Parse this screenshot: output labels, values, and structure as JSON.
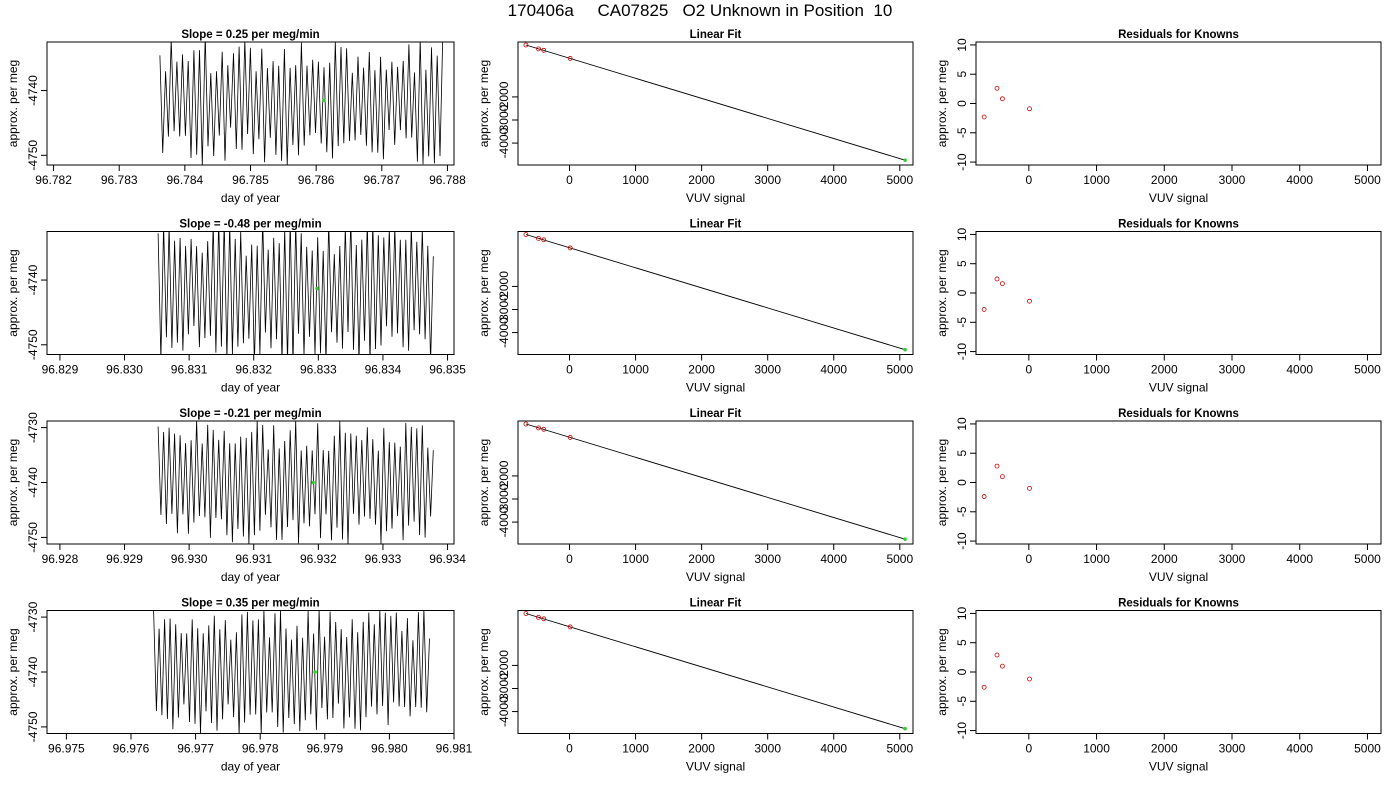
{
  "figure": {
    "title": "170406a     CA07825   O2 Unknown in Position  10"
  },
  "chart_data": [
    {
      "type": "line",
      "panel": "time-series",
      "title": "Slope =  0.25  per meg/min",
      "xlabel": "day of year",
      "ylabel": "approx. per meg",
      "xlim": [
        96.7819,
        96.7881
      ],
      "ylim": [
        -4751.5,
        -4732.5
      ],
      "xticks": [
        "96.782",
        "96.783",
        "96.784",
        "96.785",
        "96.786",
        "96.787",
        "96.788"
      ],
      "yticks": [
        "-4740",
        "-4750"
      ],
      "ytick_values": [
        -4740,
        -4750
      ],
      "signal": {
        "start": 96.78362,
        "end": 96.78793,
        "upper": -4733.8,
        "lower": -4749.2,
        "cycles": 50,
        "seed": 1
      },
      "marker": {
        "x": 96.78612,
        "y": -4741.5,
        "color": "#33cc33"
      }
    },
    {
      "type": "line",
      "panel": "linear-fit",
      "title": "Linear Fit",
      "xlabel": "VUV signal",
      "ylabel": "approx. per meg",
      "xlim": [
        -780,
        5200
      ],
      "ylim": [
        -4950,
        380
      ],
      "xticks": [
        "0",
        "1000",
        "2000",
        "3000",
        "4000",
        "5000"
      ],
      "xtick_values": [
        0,
        1000,
        2000,
        3000,
        4000,
        5000
      ],
      "yticks": [
        "-2000",
        "-3000",
        "-4000"
      ],
      "ytick_values": [
        -2000,
        -3000,
        -4000
      ],
      "fit_line": {
        "x": [
          -660,
          5080
        ],
        "y": [
          250,
          -4741
        ]
      },
      "knowns": {
        "x": [
          -660,
          -470,
          -390,
          10
        ],
        "y": [
          250,
          82,
          20,
          -332
        ]
      },
      "unknown": {
        "x": 5080,
        "y": -4741,
        "color": "#33cc33"
      }
    },
    {
      "type": "scatter",
      "panel": "residuals",
      "title": "Residuals for Knowns",
      "xlabel": "VUV signal",
      "ylabel": "approx. per meg",
      "xlim": [
        -780,
        5200
      ],
      "ylim": [
        -10.5,
        10.5
      ],
      "xticks": [
        "0",
        "1000",
        "2000",
        "3000",
        "4000",
        "5000"
      ],
      "xtick_values": [
        0,
        1000,
        2000,
        3000,
        4000,
        5000
      ],
      "yticks": [
        "-10",
        "-5",
        "0",
        "5",
        "10"
      ],
      "ytick_values": [
        -10,
        -5,
        0,
        5,
        10
      ],
      "x": [
        -660,
        -470,
        -390,
        10
      ],
      "y": [
        -2.3,
        2.6,
        0.8,
        -0.9
      ],
      "color": "#cc0000"
    },
    {
      "type": "line",
      "panel": "time-series",
      "title": "Slope =  -0.48  per meg/min",
      "xlabel": "day of year",
      "ylabel": "approx. per meg",
      "xlim": [
        96.8288,
        96.8351
      ],
      "ylim": [
        -4751.5,
        -4732.5
      ],
      "xticks": [
        "96.829",
        "96.830",
        "96.831",
        "96.832",
        "96.833",
        "96.834",
        "96.835"
      ],
      "yticks": [
        "-4740",
        "-4750"
      ],
      "ytick_values": [
        -4740,
        -4750
      ],
      "signal": {
        "start": 96.83052,
        "end": 96.83478,
        "upper": -4733.0,
        "lower": -4750.6,
        "cycles": 50,
        "seed": 2
      },
      "marker": {
        "x": 96.83298,
        "y": -4741.3,
        "color": "#33cc33"
      }
    },
    {
      "type": "line",
      "panel": "linear-fit",
      "title": "Linear Fit",
      "xlabel": "VUV signal",
      "ylabel": "approx. per meg",
      "xlim": [
        -780,
        5200
      ],
      "ylim": [
        -4950,
        380
      ],
      "xticks": [
        "0",
        "1000",
        "2000",
        "3000",
        "4000",
        "5000"
      ],
      "xtick_values": [
        0,
        1000,
        2000,
        3000,
        4000,
        5000
      ],
      "yticks": [
        "-2000",
        "-3000",
        "-4000"
      ],
      "ytick_values": [
        -2000,
        -3000,
        -4000
      ],
      "fit_line": {
        "x": [
          -660,
          5080
        ],
        "y": [
          250,
          -4741
        ]
      },
      "knowns": {
        "x": [
          -660,
          -470,
          -390,
          10
        ],
        "y": [
          250,
          82,
          20,
          -332
        ]
      },
      "unknown": {
        "x": 5080,
        "y": -4741,
        "color": "#33cc33"
      }
    },
    {
      "type": "scatter",
      "panel": "residuals",
      "title": "Residuals for Knowns",
      "xlabel": "VUV signal",
      "ylabel": "approx. per meg",
      "xlim": [
        -780,
        5200
      ],
      "ylim": [
        -10.5,
        10.5
      ],
      "xticks": [
        "0",
        "1000",
        "2000",
        "3000",
        "4000",
        "5000"
      ],
      "xtick_values": [
        0,
        1000,
        2000,
        3000,
        4000,
        5000
      ],
      "yticks": [
        "-10",
        "-5",
        "0",
        "5",
        "10"
      ],
      "ytick_values": [
        -10,
        -5,
        0,
        5,
        10
      ],
      "x": [
        -660,
        -470,
        -390,
        10
      ],
      "y": [
        -2.8,
        2.4,
        1.6,
        -1.4
      ],
      "color": "#cc0000"
    },
    {
      "type": "line",
      "panel": "time-series",
      "title": "Slope =  -0.21  per meg/min",
      "xlabel": "day of year",
      "ylabel": "approx. per meg",
      "xlim": [
        96.9278,
        96.9341
      ],
      "ylim": [
        -4751.2,
        -4728.8
      ],
      "xticks": [
        "96.928",
        "96.929",
        "96.930",
        "96.931",
        "96.932",
        "96.933",
        "96.934"
      ],
      "yticks": [
        "-4730",
        "-4740",
        "-4750"
      ],
      "ytick_values": [
        -4730,
        -4740,
        -4750
      ],
      "signal": {
        "start": 96.92952,
        "end": 96.93378,
        "upper": -4731.0,
        "lower": -4749.0,
        "cycles": 50,
        "seed": 3
      },
      "marker": {
        "x": 96.93192,
        "y": -4740.0,
        "color": "#33cc33"
      }
    },
    {
      "type": "line",
      "panel": "linear-fit",
      "title": "Linear Fit",
      "xlabel": "VUV signal",
      "ylabel": "approx. per meg",
      "xlim": [
        -780,
        5200
      ],
      "ylim": [
        -4950,
        380
      ],
      "xticks": [
        "0",
        "1000",
        "2000",
        "3000",
        "4000",
        "5000"
      ],
      "xtick_values": [
        0,
        1000,
        2000,
        3000,
        4000,
        5000
      ],
      "yticks": [
        "-2000",
        "-3000",
        "-4000"
      ],
      "ytick_values": [
        -2000,
        -3000,
        -4000
      ],
      "fit_line": {
        "x": [
          -660,
          5080
        ],
        "y": [
          250,
          -4741
        ]
      },
      "knowns": {
        "x": [
          -660,
          -470,
          -390,
          10
        ],
        "y": [
          250,
          82,
          20,
          -332
        ]
      },
      "unknown": {
        "x": 5080,
        "y": -4741,
        "color": "#33cc33"
      }
    },
    {
      "type": "scatter",
      "panel": "residuals",
      "title": "Residuals for Knowns",
      "xlabel": "VUV signal",
      "ylabel": "approx. per meg",
      "xlim": [
        -780,
        5200
      ],
      "ylim": [
        -10.5,
        10.5
      ],
      "xticks": [
        "0",
        "1000",
        "2000",
        "3000",
        "4000",
        "5000"
      ],
      "xtick_values": [
        0,
        1000,
        2000,
        3000,
        4000,
        5000
      ],
      "yticks": [
        "-10",
        "-5",
        "0",
        "5",
        "10"
      ],
      "ytick_values": [
        -10,
        -5,
        0,
        5,
        10
      ],
      "x": [
        -660,
        -470,
        -390,
        10
      ],
      "y": [
        -2.4,
        2.8,
        1.0,
        -1.0
      ],
      "color": "#cc0000"
    },
    {
      "type": "line",
      "panel": "time-series",
      "title": "Slope =  0.35  per meg/min",
      "xlabel": "day of year",
      "ylabel": "approx. per meg",
      "xlim": [
        96.9747,
        96.981
      ],
      "ylim": [
        -4751.2,
        -4728.8
      ],
      "xticks": [
        "96.975",
        "96.976",
        "96.977",
        "96.978",
        "96.979",
        "96.980",
        "96.981"
      ],
      "yticks": [
        "-4730",
        "-4740",
        "-4750"
      ],
      "ytick_values": [
        -4730,
        -4740,
        -4750
      ],
      "signal": {
        "start": 96.97635,
        "end": 96.98062,
        "upper": -4731.0,
        "lower": -4749.0,
        "cycles": 50,
        "seed": 4
      },
      "marker": {
        "x": 96.97885,
        "y": -4740.0,
        "color": "#33cc33"
      }
    },
    {
      "type": "line",
      "panel": "linear-fit",
      "title": "Linear Fit",
      "xlabel": "VUV signal",
      "ylabel": "approx. per meg",
      "xlim": [
        -780,
        5200
      ],
      "ylim": [
        -4950,
        380
      ],
      "xticks": [
        "0",
        "1000",
        "2000",
        "3000",
        "4000",
        "5000"
      ],
      "xtick_values": [
        0,
        1000,
        2000,
        3000,
        4000,
        5000
      ],
      "yticks": [
        "-2000",
        "-3000",
        "-4000"
      ],
      "ytick_values": [
        -2000,
        -3000,
        -4000
      ],
      "fit_line": {
        "x": [
          -660,
          5080
        ],
        "y": [
          250,
          -4741
        ]
      },
      "knowns": {
        "x": [
          -660,
          -470,
          -390,
          10
        ],
        "y": [
          250,
          82,
          20,
          -332
        ]
      },
      "unknown": {
        "x": 5080,
        "y": -4741,
        "color": "#33cc33"
      }
    },
    {
      "type": "scatter",
      "panel": "residuals",
      "title": "Residuals for Knowns",
      "xlabel": "VUV signal",
      "ylabel": "approx. per meg",
      "xlim": [
        -780,
        5200
      ],
      "ylim": [
        -10.5,
        10.5
      ],
      "xticks": [
        "0",
        "1000",
        "2000",
        "3000",
        "4000",
        "5000"
      ],
      "xtick_values": [
        0,
        1000,
        2000,
        3000,
        4000,
        5000
      ],
      "yticks": [
        "-10",
        "-5",
        "0",
        "5",
        "10"
      ],
      "ytick_values": [
        -10,
        -5,
        0,
        5,
        10
      ],
      "x": [
        -660,
        -470,
        -390,
        10
      ],
      "y": [
        -2.6,
        2.9,
        1.0,
        -1.2
      ],
      "color": "#cc0000"
    }
  ]
}
